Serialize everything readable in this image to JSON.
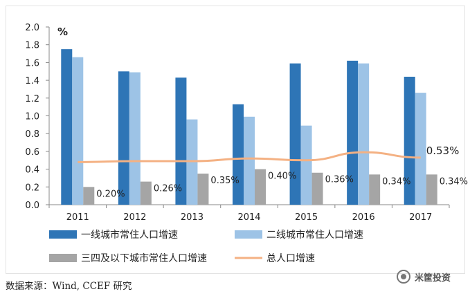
{
  "chart_data": {
    "type": "bar",
    "unit": "%",
    "categories": [
      "2011",
      "2012",
      "2013",
      "2014",
      "2015",
      "2016",
      "2017"
    ],
    "ylim": [
      0,
      2.0
    ],
    "yticks": [
      "0.0",
      "0.2",
      "0.4",
      "0.6",
      "0.8",
      "1.0",
      "1.2",
      "1.4",
      "1.6",
      "1.8",
      "2.0"
    ],
    "grid": false,
    "legend_position": "bottom",
    "series": [
      {
        "name": "一线城市常住人口增速",
        "kind": "bar",
        "color": "#2e75b6",
        "values": [
          1.75,
          1.5,
          1.43,
          1.13,
          1.59,
          1.62,
          1.44
        ]
      },
      {
        "name": "二线城市常住人口增速",
        "kind": "bar",
        "color": "#9dc3e6",
        "values": [
          1.66,
          1.49,
          0.96,
          0.99,
          0.89,
          1.59,
          1.26
        ]
      },
      {
        "name": "三四及以下城市常住人口增速",
        "kind": "bar",
        "color": "#a5a5a5",
        "values": [
          0.2,
          0.26,
          0.35,
          0.4,
          0.36,
          0.34,
          0.34
        ],
        "labels": [
          "0.20%",
          "0.26%",
          "0.35%",
          "0.40%",
          "0.36%",
          "0.34%",
          "0.34%"
        ]
      },
      {
        "name": "总人口增速",
        "kind": "line",
        "color": "#f4b183",
        "values": [
          0.48,
          0.49,
          0.49,
          0.52,
          0.5,
          0.59,
          0.53
        ]
      }
    ],
    "annotations": [
      {
        "series": 3,
        "index": 6,
        "text": "0.53%"
      }
    ]
  },
  "footer": {
    "source": "数据来源：Wind, CCEF 研究",
    "watermark": "米筐投资",
    "watermark_icon": "wechat-logo-icon"
  }
}
